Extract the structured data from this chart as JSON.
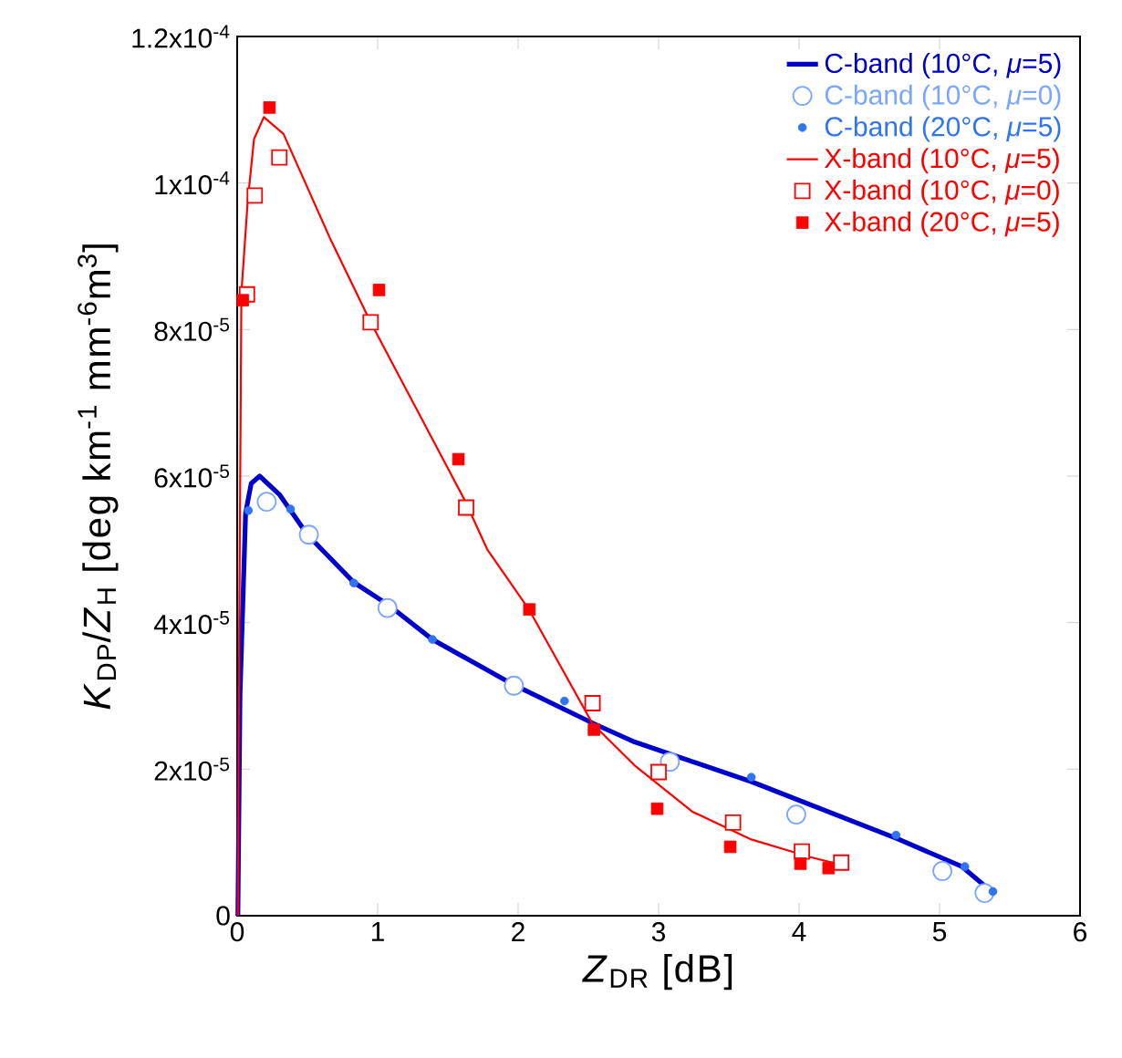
{
  "chart_data": {
    "type": "line",
    "xlabel": "*Z*$_{DR}$ [dB]",
    "ylabel": "*K*$_{DP}$/*Z*$_{H}$ [deg km$^{-1}$ mm$^{-6}$m$^{3}$]",
    "xlim": [
      0,
      6
    ],
    "xticks": [
      0,
      1,
      2,
      3,
      4,
      5,
      6
    ],
    "ylim": [
      0,
      0.00012
    ],
    "yticks": [
      {
        "value": 0,
        "label": "0"
      },
      {
        "value": 2e-05,
        "label": "2x10$^{-5}$"
      },
      {
        "value": 4e-05,
        "label": "4x10$^{-5}$"
      },
      {
        "value": 6e-05,
        "label": "6x10$^{-5}$"
      },
      {
        "value": 8e-05,
        "label": "8x10$^{-5}$"
      },
      {
        "value": 0.0001,
        "label": "1x10$^{-4}$"
      },
      {
        "value": 0.00012,
        "label": "1.2x10$^{-4}$"
      }
    ],
    "grid": false,
    "legend": "top right",
    "series": [
      {
        "name": "C-band (10°C, *μ*=5)",
        "marker": "none",
        "line_style": "solid",
        "color": "#0000cc",
        "x": [
          0.005,
          0.02,
          0.06,
          0.1,
          0.16,
          0.3,
          0.5,
          0.83,
          1.07,
          1.39,
          1.97,
          2.54,
          2.83,
          3.66,
          4.7,
          5.16,
          5.37
        ],
        "values": [
          0,
          3e-05,
          5.5e-05,
          5.9e-05,
          6e-05,
          5.75e-05,
          5.2e-05,
          4.55e-05,
          4.25e-05,
          3.77e-05,
          3.15e-05,
          2.62e-05,
          2.37e-05,
          1.83e-05,
          1.05e-05,
          6.7e-06,
          3.3e-06
        ]
      },
      {
        "name": "C-band (10°C, *μ*=0)",
        "type": "scatter",
        "marker": "circle",
        "color": "#7aa6ff",
        "x": [
          0.21,
          0.51,
          1.07,
          1.97,
          3.08,
          3.98,
          5.02,
          5.32
        ],
        "values": [
          5.65e-05,
          5.2e-05,
          4.2e-05,
          3.14e-05,
          2.1e-05,
          1.38e-05,
          6.1e-06,
          3.1e-06
        ]
      },
      {
        "name": "C-band (20°C, *μ*=5)",
        "type": "scatter",
        "marker": "circle",
        "color": "#2f74f0",
        "x": [
          0.08,
          0.38,
          0.83,
          1.39,
          2.33,
          3.66,
          4.69,
          5.18,
          5.38
        ],
        "values": [
          5.53e-05,
          5.55e-05,
          4.54e-05,
          3.77e-05,
          2.93e-05,
          1.89e-05,
          1.1e-05,
          6.7e-06,
          3.3e-06
        ]
      },
      {
        "name": "X-band (10°C, *μ*=5)",
        "marker": "none",
        "line_style": "solid",
        "color": "#ff0000",
        "x": [
          0.005,
          0.015,
          0.03,
          0.075,
          0.12,
          0.19,
          0.33,
          0.66,
          0.95,
          1.62,
          1.78,
          2.08,
          2.53,
          2.83,
          3.24,
          3.66,
          4.08,
          4.35
        ],
        "values": [
          0,
          4e-05,
          8.5e-05,
          9.75e-05,
          0.000106,
          0.000109,
          0.0001067,
          9.25e-05,
          8.1e-05,
          5.67e-05,
          5e-05,
          4.17e-05,
          2.62e-05,
          2.05e-05,
          1.42e-05,
          1.04e-05,
          8e-06,
          6.7e-06
        ]
      },
      {
        "name": "X-band (10°C, *μ*=0)",
        "type": "scatter",
        "marker": "square",
        "color": "#ff0000",
        "x": [
          0.07,
          0.125,
          0.3,
          0.95,
          1.63,
          2.53,
          3.0,
          3.53,
          4.02,
          4.3
        ],
        "values": [
          8.48e-05,
          9.83e-05,
          0.0001035,
          8.1e-05,
          5.57e-05,
          2.9e-05,
          1.96e-05,
          1.27e-05,
          8.75e-06,
          7.25e-06
        ]
      },
      {
        "name": "X-band (20°C, *μ*=5)",
        "type": "scatter",
        "marker": "square",
        "color": "#ff0000",
        "x": [
          0.04,
          0.23,
          1.01,
          1.575,
          2.08,
          2.54,
          2.99,
          3.51,
          4.01,
          4.21
        ],
        "values": [
          8.4e-05,
          0.0001103,
          8.54e-05,
          6.23e-05,
          4.18e-05,
          2.54e-05,
          1.46e-05,
          9.4e-06,
          7.1e-06,
          6.5e-06
        ]
      }
    ]
  }
}
